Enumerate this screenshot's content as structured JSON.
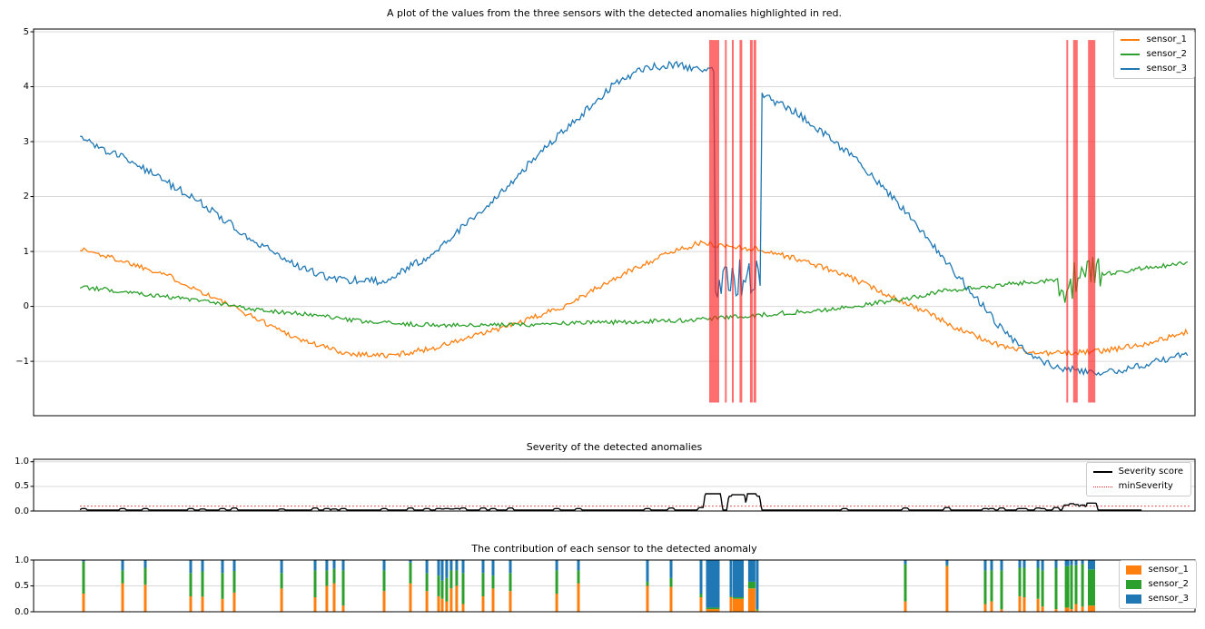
{
  "colors": {
    "sensor_1": "#ff7f0e",
    "sensor_2": "#2ca02c",
    "sensor_3": "#1f77b4",
    "anomaly_red": "#ff2121",
    "severity": "#000000",
    "min_severity": "#d62728",
    "grid": "#d9d9d9",
    "spine": "#000000"
  },
  "chart_data": [
    {
      "type": "line",
      "title": "A plot of the values from the three sensors with the detected anomalies highlighted in red.",
      "ylim": [
        -1.99,
        5.05
      ],
      "grid": true,
      "legend_position": "upper right",
      "yticks": [
        {
          "v": 5,
          "label": "5"
        },
        {
          "v": 4,
          "label": "4"
        },
        {
          "v": 3,
          "label": "3"
        },
        {
          "v": 2,
          "label": "2"
        },
        {
          "v": 1,
          "label": "1"
        },
        {
          "v": 0,
          "label": "0"
        },
        {
          "v": -1,
          "label": "−1"
        }
      ],
      "series": [
        {
          "name": "sensor_1",
          "color_key": "sensor_1",
          "noise": 0.05,
          "keypoints": [
            [
              0.04,
              1.05
            ],
            [
              0.073,
              0.85
            ],
            [
              0.112,
              0.6
            ],
            [
              0.151,
              0.2
            ],
            [
              0.19,
              -0.2
            ],
            [
              0.229,
              -0.6
            ],
            [
              0.268,
              -0.85
            ],
            [
              0.307,
              -0.9
            ],
            [
              0.346,
              -0.75
            ],
            [
              0.386,
              -0.5
            ],
            [
              0.425,
              -0.25
            ],
            [
              0.456,
              0.0
            ],
            [
              0.487,
              0.35
            ],
            [
              0.518,
              0.7
            ],
            [
              0.55,
              1.0
            ],
            [
              0.573,
              1.15
            ],
            [
              0.597,
              1.1
            ],
            [
              0.62,
              1.05
            ],
            [
              0.643,
              0.95
            ],
            [
              0.675,
              0.75
            ],
            [
              0.706,
              0.5
            ],
            [
              0.737,
              0.2
            ],
            [
              0.768,
              -0.1
            ],
            [
              0.8,
              -0.45
            ],
            [
              0.831,
              -0.7
            ],
            [
              0.862,
              -0.85
            ],
            [
              0.894,
              -0.85
            ],
            [
              0.925,
              -0.8
            ],
            [
              0.956,
              -0.68
            ],
            [
              0.98,
              -0.55
            ],
            [
              0.995,
              -0.45
            ]
          ]
        },
        {
          "name": "sensor_2",
          "color_key": "sensor_2",
          "noise": 0.04,
          "oscillation": {
            "x0": 0.881,
            "x1": 0.92,
            "low": -0.15,
            "high": 0.9
          },
          "keypoints": [
            [
              0.04,
              0.35
            ],
            [
              0.088,
              0.25
            ],
            [
              0.143,
              0.1
            ],
            [
              0.19,
              -0.05
            ],
            [
              0.237,
              -0.15
            ],
            [
              0.284,
              -0.28
            ],
            [
              0.331,
              -0.33
            ],
            [
              0.378,
              -0.35
            ],
            [
              0.425,
              -0.33
            ],
            [
              0.472,
              -0.3
            ],
            [
              0.518,
              -0.28
            ],
            [
              0.565,
              -0.25
            ],
            [
              0.597,
              -0.2
            ],
            [
              0.628,
              -0.15
            ],
            [
              0.659,
              -0.1
            ],
            [
              0.69,
              -0.05
            ],
            [
              0.722,
              0.05
            ],
            [
              0.753,
              0.15
            ],
            [
              0.784,
              0.28
            ],
            [
              0.816,
              0.35
            ],
            [
              0.847,
              0.42
            ],
            [
              0.878,
              0.48
            ],
            [
              0.925,
              0.6
            ],
            [
              0.956,
              0.7
            ],
            [
              0.98,
              0.75
            ],
            [
              0.995,
              0.8
            ]
          ]
        },
        {
          "name": "sensor_3",
          "color_key": "sensor_3",
          "noise": 0.07,
          "oscillation": {
            "x0": 0.5865,
            "x1": 0.626,
            "low": 0.15,
            "high": 0.95
          },
          "keypoints": [
            [
              0.04,
              3.05
            ],
            [
              0.088,
              2.6
            ],
            [
              0.143,
              1.9
            ],
            [
              0.19,
              1.2
            ],
            [
              0.229,
              0.7
            ],
            [
              0.26,
              0.5
            ],
            [
              0.3,
              0.45
            ],
            [
              0.339,
              0.9
            ],
            [
              0.378,
              1.6
            ],
            [
              0.409,
              2.2
            ],
            [
              0.44,
              2.9
            ],
            [
              0.472,
              3.5
            ],
            [
              0.503,
              4.1
            ],
            [
              0.526,
              4.35
            ],
            [
              0.55,
              4.4
            ],
            [
              0.585,
              4.3
            ],
            [
              0.628,
              3.85
            ],
            [
              0.659,
              3.5
            ],
            [
              0.69,
              3.0
            ],
            [
              0.714,
              2.55
            ],
            [
              0.737,
              2.05
            ],
            [
              0.761,
              1.45
            ],
            [
              0.784,
              0.85
            ],
            [
              0.808,
              0.25
            ],
            [
              0.831,
              -0.35
            ],
            [
              0.855,
              -0.85
            ],
            [
              0.878,
              -1.1
            ],
            [
              0.909,
              -1.2
            ],
            [
              0.941,
              -1.15
            ],
            [
              0.964,
              -1.0
            ],
            [
              0.995,
              -0.85
            ]
          ]
        }
      ],
      "anomaly_spans": [
        {
          "x": 0.586,
          "w": 11
        },
        {
          "x": 0.596,
          "w": 2
        },
        {
          "x": 0.602,
          "w": 2
        },
        {
          "x": 0.609,
          "w": 3
        },
        {
          "x": 0.618,
          "w": 3
        },
        {
          "x": 0.621,
          "w": 3
        },
        {
          "x": 0.89,
          "w": 2
        },
        {
          "x": 0.897,
          "w": 5
        },
        {
          "x": 0.911,
          "w": 8
        }
      ],
      "span_vrange": [
        4.85,
        -1.75
      ]
    },
    {
      "type": "line",
      "title": "Severity of the detected anomalies",
      "ylim": [
        0,
        1.05
      ],
      "yticks": [
        {
          "v": 1.0,
          "label": "1.0"
        },
        {
          "v": 0.5,
          "label": "0.5"
        },
        {
          "v": 0.0,
          "label": "0.0"
        }
      ],
      "legend": [
        {
          "label": "Severity score"
        },
        {
          "label": "minSeverity"
        }
      ],
      "min_severity": 0.1,
      "baseline": 0.02,
      "line_start": 0.04,
      "line_end": 0.954
    },
    {
      "type": "bar",
      "title": "The contribution of each sensor to the detected anomaly",
      "ylim": [
        0,
        1
      ],
      "yticks": [
        {
          "v": 1.0,
          "label": "1.0"
        },
        {
          "v": 0.5,
          "label": "0.5"
        },
        {
          "v": 0.0,
          "label": "0.0"
        }
      ],
      "legend": [
        {
          "label": "sensor_1"
        },
        {
          "label": "sensor_2"
        },
        {
          "label": "sensor_3"
        }
      ]
    }
  ],
  "anomalies": [
    {
      "x": 0.043,
      "contrib": [
        0.35,
        0.62,
        0.03
      ],
      "sev": 0.05,
      "w": 3
    },
    {
      "x": 0.0766,
      "contrib": [
        0.55,
        0.25,
        0.2
      ],
      "sev": 0.05,
      "w": 3
    },
    {
      "x": 0.0962,
      "contrib": [
        0.52,
        0.33,
        0.15
      ],
      "sev": 0.05,
      "w": 3
    },
    {
      "x": 0.1353,
      "contrib": [
        0.3,
        0.45,
        0.25
      ],
      "sev": 0.05,
      "w": 3
    },
    {
      "x": 0.1454,
      "contrib": [
        0.29,
        0.49,
        0.22
      ],
      "sev": 0.04,
      "w": 3
    },
    {
      "x": 0.1626,
      "contrib": [
        0.25,
        0.5,
        0.25
      ],
      "sev": 0.05,
      "w": 3
    },
    {
      "x": 0.1728,
      "contrib": [
        0.37,
        0.42,
        0.21
      ],
      "sev": 0.06,
      "w": 3
    },
    {
      "x": 0.2135,
      "contrib": [
        0.45,
        0.3,
        0.25
      ],
      "sev": 0.04,
      "w": 3
    },
    {
      "x": 0.2424,
      "contrib": [
        0.28,
        0.52,
        0.2
      ],
      "sev": 0.06,
      "w": 3
    },
    {
      "x": 0.2525,
      "contrib": [
        0.5,
        0.3,
        0.2
      ],
      "sev": 0.05,
      "w": 3
    },
    {
      "x": 0.2588,
      "contrib": [
        0.55,
        0.28,
        0.17
      ],
      "sev": 0.04,
      "w": 3
    },
    {
      "x": 0.2666,
      "contrib": [
        0.12,
        0.68,
        0.2
      ],
      "sev": 0.05,
      "w": 3
    },
    {
      "x": 0.3018,
      "contrib": [
        0.4,
        0.4,
        0.2
      ],
      "sev": 0.05,
      "w": 3
    },
    {
      "x": 0.3245,
      "contrib": [
        0.55,
        0.4,
        0.05
      ],
      "sev": 0.06,
      "w": 3
    },
    {
      "x": 0.3386,
      "contrib": [
        0.4,
        0.35,
        0.25
      ],
      "sev": 0.05,
      "w": 3
    },
    {
      "x": 0.3487,
      "contrib": [
        0.3,
        0.4,
        0.3
      ],
      "sev": 0.05,
      "w": 3
    },
    {
      "x": 0.3518,
      "contrib": [
        0.25,
        0.35,
        0.4
      ],
      "sev": 0.04,
      "w": 3
    },
    {
      "x": 0.3557,
      "contrib": [
        0.2,
        0.45,
        0.35
      ],
      "sev": 0.05,
      "w": 3
    },
    {
      "x": 0.3596,
      "contrib": [
        0.45,
        0.35,
        0.2
      ],
      "sev": 0.04,
      "w": 3
    },
    {
      "x": 0.3643,
      "contrib": [
        0.5,
        0.3,
        0.2
      ],
      "sev": 0.05,
      "w": 3
    },
    {
      "x": 0.3698,
      "contrib": [
        0.15,
        0.6,
        0.25
      ],
      "sev": 0.06,
      "w": 3
    },
    {
      "x": 0.387,
      "contrib": [
        0.3,
        0.45,
        0.25
      ],
      "sev": 0.06,
      "w": 3
    },
    {
      "x": 0.3956,
      "contrib": [
        0.45,
        0.25,
        0.3
      ],
      "sev": 0.05,
      "w": 3
    },
    {
      "x": 0.4105,
      "contrib": [
        0.4,
        0.35,
        0.25
      ],
      "sev": 0.06,
      "w": 3
    },
    {
      "x": 0.4504,
      "contrib": [
        0.35,
        0.45,
        0.2
      ],
      "sev": 0.05,
      "w": 3
    },
    {
      "x": 0.4691,
      "contrib": [
        0.55,
        0.25,
        0.2
      ],
      "sev": 0.05,
      "w": 3
    },
    {
      "x": 0.5285,
      "contrib": [
        0.5,
        0.08,
        0.42
      ],
      "sev": 0.05,
      "w": 3
    },
    {
      "x": 0.5489,
      "contrib": [
        0.48,
        0.17,
        0.35
      ],
      "sev": 0.06,
      "w": 3
    },
    {
      "x": 0.5747,
      "contrib": [
        0.28,
        0.07,
        0.65
      ],
      "sev": 0.07,
      "w": 3
    },
    {
      "x": 0.5848,
      "contrib": [
        0.05,
        0.03,
        0.92
      ],
      "sev": 0.35,
      "w": 15
    },
    {
      "x": 0.6005,
      "contrib": [
        0.28,
        0.02,
        0.7
      ],
      "sev": 0.3,
      "w": 3
    },
    {
      "x": 0.6067,
      "contrib": [
        0.25,
        0.03,
        0.72
      ],
      "sev": 0.33,
      "w": 12
    },
    {
      "x": 0.6184,
      "contrib": [
        0.45,
        0.13,
        0.42
      ],
      "sev": 0.35,
      "w": 8
    },
    {
      "x": 0.6231,
      "contrib": [
        0.02,
        0.03,
        0.95
      ],
      "sev": 0.3,
      "w": 3
    },
    {
      "x": 0.6982,
      "contrib": [
        0,
        0,
        0
      ],
      "sev": 0.05,
      "w": 3
    },
    {
      "x": 0.7506,
      "contrib": [
        0.2,
        0.72,
        0.08
      ],
      "sev": 0.06,
      "w": 3
    },
    {
      "x": 0.7865,
      "contrib": [
        0.88,
        0.02,
        0.1
      ],
      "sev": 0.07,
      "w": 3
    },
    {
      "x": 0.8194,
      "contrib": [
        0.15,
        0.65,
        0.2
      ],
      "sev": 0.05,
      "w": 3
    },
    {
      "x": 0.8249,
      "contrib": [
        0.2,
        0.6,
        0.2
      ],
      "sev": 0.05,
      "w": 3
    },
    {
      "x": 0.8335,
      "contrib": [
        0.05,
        0.75,
        0.2
      ],
      "sev": 0.06,
      "w": 3
    },
    {
      "x": 0.8491,
      "contrib": [
        0.3,
        0.55,
        0.15
      ],
      "sev": 0.05,
      "w": 3
    },
    {
      "x": 0.853,
      "contrib": [
        0.28,
        0.57,
        0.15
      ],
      "sev": 0.05,
      "w": 3
    },
    {
      "x": 0.8648,
      "contrib": [
        0.25,
        0.6,
        0.15
      ],
      "sev": 0.06,
      "w": 3
    },
    {
      "x": 0.8687,
      "contrib": [
        0.1,
        0.7,
        0.2
      ],
      "sev": 0.05,
      "w": 3
    },
    {
      "x": 0.8804,
      "contrib": [
        0.05,
        0.8,
        0.15
      ],
      "sev": 0.07,
      "w": 3
    },
    {
      "x": 0.8898,
      "contrib": [
        0.08,
        0.8,
        0.12
      ],
      "sev": 0.12,
      "w": 5
    },
    {
      "x": 0.8937,
      "contrib": [
        0.05,
        0.85,
        0.1
      ],
      "sev": 0.15,
      "w": 3
    },
    {
      "x": 0.8976,
      "contrib": [
        0.15,
        0.75,
        0.1
      ],
      "sev": 0.13,
      "w": 3
    },
    {
      "x": 0.9031,
      "contrib": [
        0.1,
        0.82,
        0.08
      ],
      "sev": 0.12,
      "w": 3
    },
    {
      "x": 0.9109,
      "contrib": [
        0.12,
        0.7,
        0.18
      ],
      "sev": 0.16,
      "w": 8
    }
  ]
}
